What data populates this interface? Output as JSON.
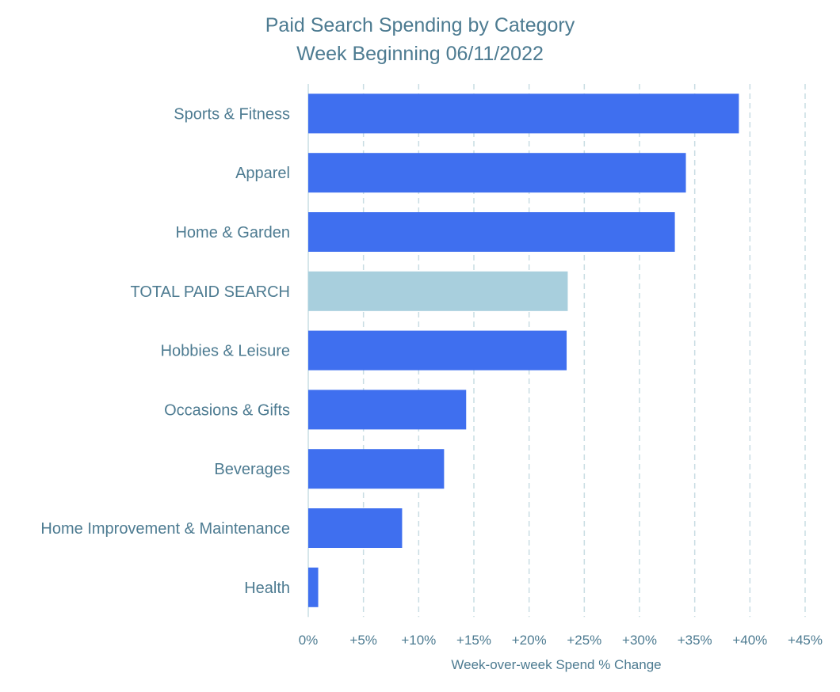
{
  "chart_data": {
    "type": "bar",
    "orientation": "horizontal",
    "title": "Paid Search Spending by Category",
    "subtitle": "Week Beginning 06/11/2022",
    "xlabel": "Week-over-week Spend % Change",
    "ylabel": "",
    "xlim": [
      0,
      45
    ],
    "x_ticks": [
      0,
      5,
      10,
      15,
      20,
      25,
      30,
      35,
      40,
      45
    ],
    "x_tick_labels": [
      "0%",
      "+5%",
      "+10%",
      "+15%",
      "+20%",
      "+25%",
      "+30%",
      "+35%",
      "+40%",
      "+45%"
    ],
    "grid": "vertical dashed",
    "legend": "none",
    "categories": [
      "Sports & Fitness",
      "Apparel",
      "Home & Garden",
      "TOTAL PAID SEARCH",
      "Hobbies & Leisure",
      "Occasions & Gifts",
      "Beverages",
      "Home Improvement & Maintenance",
      "Health"
    ],
    "values": [
      39.0,
      34.2,
      33.2,
      23.5,
      23.4,
      14.3,
      12.3,
      8.5,
      0.9
    ],
    "highlight_category": "TOTAL PAID SEARCH",
    "colors": {
      "bar": "#3f6fef",
      "highlight": "#a8cfdd",
      "text": "#4d7b91",
      "grid": "#c9dde3"
    }
  }
}
